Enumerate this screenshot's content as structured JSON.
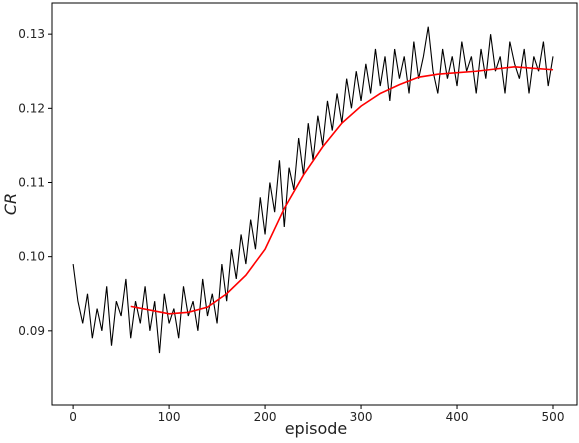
{
  "chart_data": {
    "type": "line",
    "xlabel": "episode",
    "ylabel": "CR",
    "xlim": [
      -22,
      525
    ],
    "ylim": [
      0.08,
      0.1342
    ],
    "xticks": [
      0,
      100,
      200,
      300,
      400,
      500
    ],
    "yticks": [
      0.09,
      {
        "value": 0.1,
        "label": "0.10"
      },
      0.11,
      0.12,
      0.13
    ],
    "series": [
      {
        "color": "#000000",
        "x": [
          0,
          5,
          10,
          15,
          20,
          25,
          30,
          35,
          40,
          45,
          50,
          55,
          60,
          65,
          70,
          75,
          80,
          85,
          90,
          95,
          100,
          105,
          110,
          115,
          120,
          125,
          130,
          135,
          140,
          145,
          150,
          155,
          160,
          165,
          170,
          175,
          180,
          185,
          190,
          195,
          200,
          205,
          210,
          215,
          220,
          225,
          230,
          235,
          240,
          245,
          250,
          255,
          260,
          265,
          270,
          275,
          280,
          285,
          290,
          295,
          300,
          305,
          310,
          315,
          320,
          325,
          330,
          335,
          340,
          345,
          350,
          355,
          360,
          365,
          370,
          375,
          380,
          385,
          390,
          395,
          400,
          405,
          410,
          415,
          420,
          425,
          430,
          435,
          440,
          445,
          450,
          455,
          460,
          465,
          470,
          475,
          480,
          485,
          490,
          495,
          500
        ],
        "values": [
          0.099,
          0.094,
          0.091,
          0.095,
          0.089,
          0.093,
          0.09,
          0.096,
          0.088,
          0.094,
          0.092,
          0.097,
          0.089,
          0.094,
          0.091,
          0.096,
          0.09,
          0.094,
          0.087,
          0.095,
          0.091,
          0.093,
          0.089,
          0.096,
          0.092,
          0.094,
          0.09,
          0.097,
          0.092,
          0.095,
          0.091,
          0.099,
          0.094,
          0.101,
          0.097,
          0.103,
          0.099,
          0.105,
          0.101,
          0.108,
          0.103,
          0.11,
          0.106,
          0.113,
          0.104,
          0.112,
          0.109,
          0.116,
          0.111,
          0.118,
          0.113,
          0.119,
          0.115,
          0.121,
          0.117,
          0.122,
          0.118,
          0.124,
          0.12,
          0.125,
          0.121,
          0.126,
          0.122,
          0.128,
          0.123,
          0.127,
          0.121,
          0.128,
          0.124,
          0.127,
          0.122,
          0.129,
          0.124,
          0.127,
          0.131,
          0.125,
          0.122,
          0.128,
          0.124,
          0.127,
          0.123,
          0.129,
          0.125,
          0.127,
          0.122,
          0.128,
          0.124,
          0.13,
          0.125,
          0.127,
          0.122,
          0.129,
          0.126,
          0.124,
          0.128,
          0.122,
          0.127,
          0.125,
          0.129,
          0.123,
          0.127
        ]
      },
      {
        "color": "#ff0000",
        "x": [
          60,
          80,
          100,
          120,
          140,
          160,
          180,
          200,
          220,
          240,
          260,
          280,
          300,
          320,
          340,
          360,
          380,
          400,
          420,
          440,
          460,
          480,
          500
        ],
        "values": [
          0.0933,
          0.0928,
          0.0923,
          0.0925,
          0.0932,
          0.095,
          0.0975,
          0.101,
          0.1065,
          0.111,
          0.1148,
          0.118,
          0.1203,
          0.122,
          0.1232,
          0.1242,
          0.1246,
          0.1248,
          0.125,
          0.1253,
          0.1256,
          0.1254,
          0.1252
        ]
      }
    ]
  }
}
